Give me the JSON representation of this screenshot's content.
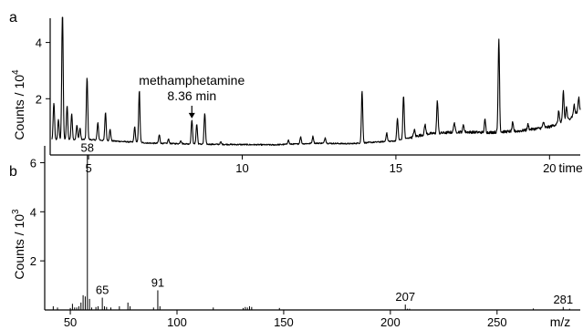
{
  "chart_data": [
    {
      "type": "line",
      "panel_letter": "a",
      "ylabel_main": "Counts / 10",
      "ylabel_exp": "4",
      "xlabel": "time (min)",
      "xlim": [
        3.75,
        21.0
      ],
      "ylim": [
        0,
        4.7
      ],
      "x_ticks": [
        5,
        10,
        15,
        20
      ],
      "x_tick_labels": [
        "5",
        "10",
        "15",
        "20"
      ],
      "y_ticks": [
        2,
        4
      ],
      "y_tick_labels": [
        "2",
        "4"
      ],
      "baseline": [
        [
          3.8,
          0.55
        ],
        [
          5,
          0.55
        ],
        [
          7,
          0.42
        ],
        [
          9,
          0.38
        ],
        [
          11,
          0.36
        ],
        [
          12.5,
          0.42
        ],
        [
          13.5,
          0.4
        ],
        [
          15,
          0.5
        ],
        [
          16,
          0.75
        ],
        [
          17,
          0.82
        ],
        [
          18,
          0.8
        ],
        [
          19,
          0.85
        ],
        [
          20,
          1.0
        ],
        [
          20.6,
          1.25
        ],
        [
          21.0,
          1.6
        ]
      ],
      "peaks": [
        [
          3.87,
          1.3
        ],
        [
          4.02,
          0.7
        ],
        [
          4.15,
          4.9
        ],
        [
          4.3,
          1.2
        ],
        [
          4.45,
          0.9
        ],
        [
          4.62,
          0.5
        ],
        [
          4.72,
          0.4
        ],
        [
          4.95,
          2.2
        ],
        [
          5.3,
          0.6
        ],
        [
          5.55,
          1.0
        ],
        [
          5.7,
          0.4
        ],
        [
          6.5,
          0.55
        ],
        [
          6.65,
          1.85
        ],
        [
          7.3,
          0.3
        ],
        [
          7.6,
          0.15
        ],
        [
          8.0,
          0.12
        ],
        [
          8.36,
          0.85
        ],
        [
          8.52,
          0.7
        ],
        [
          8.78,
          1.1
        ],
        [
          9.3,
          0.08
        ],
        [
          11.5,
          0.15
        ],
        [
          11.9,
          0.25
        ],
        [
          12.3,
          0.25
        ],
        [
          12.7,
          0.2
        ],
        [
          13.9,
          1.85
        ],
        [
          14.7,
          0.3
        ],
        [
          15.05,
          0.8
        ],
        [
          15.25,
          1.55
        ],
        [
          15.6,
          0.25
        ],
        [
          15.95,
          0.35
        ],
        [
          16.35,
          1.15
        ],
        [
          16.9,
          0.35
        ],
        [
          17.2,
          0.25
        ],
        [
          17.9,
          0.45
        ],
        [
          18.35,
          3.3
        ],
        [
          18.8,
          0.3
        ],
        [
          19.3,
          0.2
        ],
        [
          19.8,
          0.2
        ],
        [
          20.3,
          0.45
        ],
        [
          20.45,
          1.1
        ],
        [
          20.55,
          0.5
        ],
        [
          20.8,
          0.35
        ],
        [
          20.95,
          0.5
        ]
      ],
      "annotations": [
        {
          "text": "methamphetamine",
          "x": 8.36,
          "y": 2.5
        },
        {
          "text": "8.36 min",
          "x": 8.36,
          "y": 1.95
        }
      ],
      "arrow": {
        "x": 8.36,
        "y_from": 1.75,
        "y_to": 1.3
      }
    },
    {
      "type": "bar",
      "panel_letter": "b",
      "ylabel_main": "Counts / 10",
      "ylabel_exp": "3",
      "xlabel": "m/z",
      "xlim": [
        38,
        289
      ],
      "ylim": [
        0,
        6.5
      ],
      "x_ticks": [
        50,
        100,
        150,
        200,
        250
      ],
      "x_tick_labels": [
        "50",
        "100",
        "150",
        "200",
        "250"
      ],
      "y_ticks": [
        2,
        4,
        6
      ],
      "y_tick_labels": [
        "2",
        "4",
        "6"
      ],
      "bars": [
        [
          42,
          0.15
        ],
        [
          44,
          0.1
        ],
        [
          50,
          0.08
        ],
        [
          51,
          0.25
        ],
        [
          52,
          0.1
        ],
        [
          53,
          0.1
        ],
        [
          54,
          0.15
        ],
        [
          55,
          0.3
        ],
        [
          56,
          0.6
        ],
        [
          57,
          0.55
        ],
        [
          58,
          6.3
        ],
        [
          59,
          0.45
        ],
        [
          60,
          0.1
        ],
        [
          62,
          0.12
        ],
        [
          63,
          0.15
        ],
        [
          65,
          0.5
        ],
        [
          66,
          0.15
        ],
        [
          67,
          0.12
        ],
        [
          69,
          0.1
        ],
        [
          73,
          0.15
        ],
        [
          77,
          0.3
        ],
        [
          78,
          0.15
        ],
        [
          89,
          0.1
        ],
        [
          91,
          0.8
        ],
        [
          92,
          0.15
        ],
        [
          117,
          0.1
        ],
        [
          131,
          0.08
        ],
        [
          132,
          0.12
        ],
        [
          133,
          0.1
        ],
        [
          134,
          0.15
        ],
        [
          135,
          0.12
        ],
        [
          148,
          0.08
        ],
        [
          207,
          0.22
        ],
        [
          208,
          0.05
        ],
        [
          209,
          0.05
        ],
        [
          267,
          0.06
        ],
        [
          281,
          0.12
        ],
        [
          284,
          0.05
        ]
      ],
      "peak_labels": [
        {
          "text": "58",
          "x": 58,
          "y": 6.3
        },
        {
          "text": "65",
          "x": 65,
          "y": 0.5
        },
        {
          "text": "91",
          "x": 91,
          "y": 0.8
        },
        {
          "text": "207",
          "x": 207,
          "y": 0.22
        },
        {
          "text": "281",
          "x": 281,
          "y": 0.12
        }
      ]
    }
  ]
}
